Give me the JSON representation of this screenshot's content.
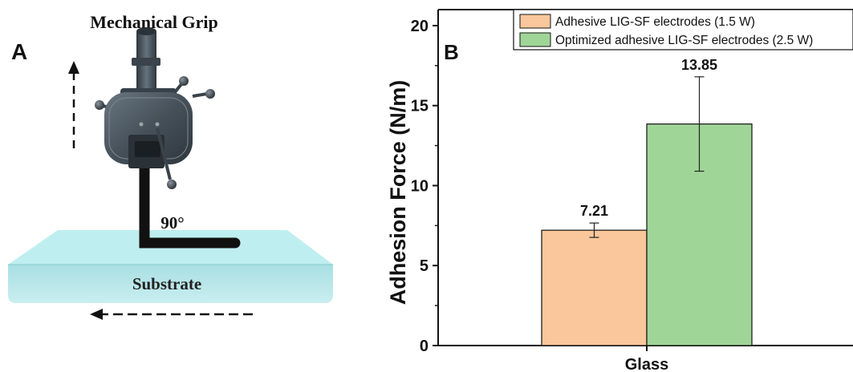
{
  "figure": {
    "panel_a": {
      "label": "A",
      "grip_label": "Mechanical Grip",
      "angle_label": "90°",
      "substrate_label": "Substrate"
    },
    "colors": {
      "substrate_top": "#bfeef0",
      "substrate_side": "#9fd7da",
      "grip": "#46515a",
      "film": "#111111"
    }
  },
  "chart_data": {
    "type": "bar",
    "panel_label": "B",
    "title": "",
    "xlabel": "",
    "ylabel": "Adhesion Force (N/m)",
    "categories": [
      "Glass"
    ],
    "ylim": [
      0,
      21
    ],
    "yticks": [
      0,
      5,
      10,
      15,
      20
    ],
    "series": [
      {
        "name": "Adhesive LIG-SF electrodes (1.5 W)",
        "values": [
          7.21
        ],
        "error": [
          0.45
        ],
        "value_label": "7.21",
        "color": "#f9c79b"
      },
      {
        "name": "Optimized adhesive LIG-SF electrodes (2.5 W)",
        "values": [
          13.85
        ],
        "error": [
          2.95
        ],
        "value_label": "13.85",
        "color": "#9fd697"
      }
    ],
    "legend_position": "top-right",
    "grid": false
  }
}
